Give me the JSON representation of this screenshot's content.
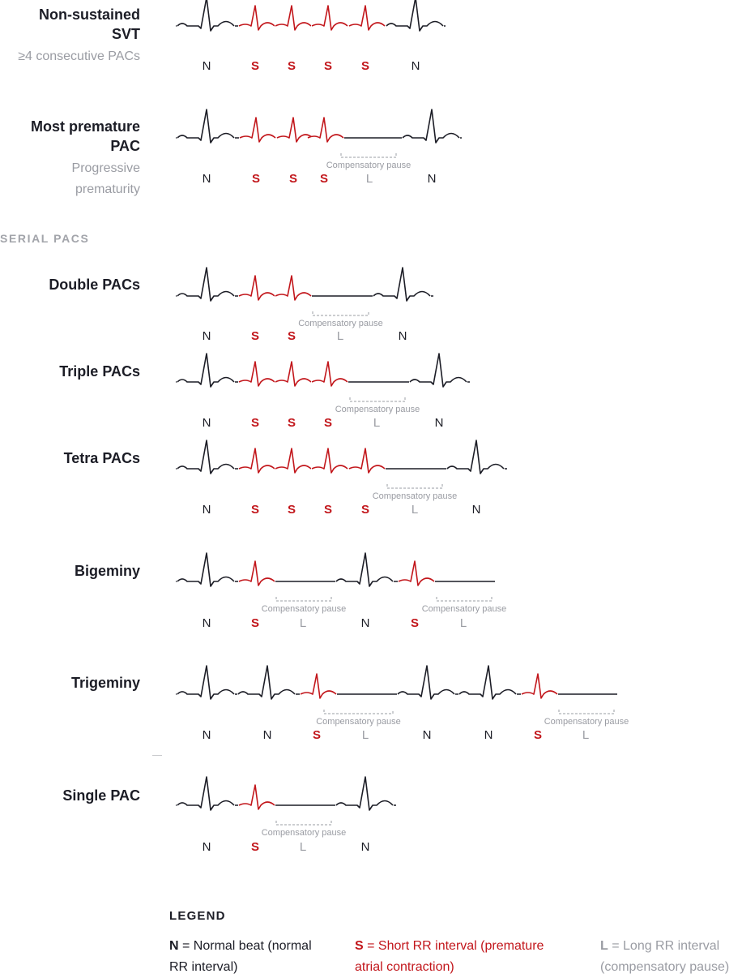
{
  "colors": {
    "normal": "#1c1d26",
    "premature": "#c2161b",
    "long": "#9a9ca3",
    "section": "#a2a4aa"
  },
  "rows": [
    {
      "id": "nsvt",
      "title": [
        "Non-sustained",
        "SVT"
      ],
      "subtitle": [
        "≥4 consecutive PACs"
      ],
      "beats": [
        "N",
        "S",
        "S",
        "S",
        "S",
        "N"
      ],
      "pauses": []
    },
    {
      "id": "most-premature",
      "title": [
        "Most premature",
        "PAC"
      ],
      "subtitle": [
        "Progressive",
        "prematurity"
      ],
      "beats": [
        "N",
        "S",
        "S",
        "S",
        "L",
        "N"
      ],
      "pauses": [
        "Compensatory pause"
      ]
    },
    {
      "id": "double",
      "title": [
        "Double PACs"
      ],
      "subtitle": [],
      "beats": [
        "N",
        "S",
        "S",
        "L",
        "N"
      ],
      "pauses": [
        "Compensatory pause"
      ]
    },
    {
      "id": "triple",
      "title": [
        "Triple PACs"
      ],
      "subtitle": [],
      "beats": [
        "N",
        "S",
        "S",
        "S",
        "L",
        "N"
      ],
      "pauses": [
        "Compensatory pause"
      ]
    },
    {
      "id": "tetra",
      "title": [
        "Tetra PACs"
      ],
      "subtitle": [],
      "beats": [
        "N",
        "S",
        "S",
        "S",
        "S",
        "L",
        "N"
      ],
      "pauses": [
        "Compensatory pause"
      ]
    },
    {
      "id": "bigeminy",
      "title": [
        "Bigeminy"
      ],
      "subtitle": [],
      "beats": [
        "N",
        "S",
        "L",
        "N",
        "S",
        "L"
      ],
      "pauses": [
        "Compensatory pause",
        "Compensatory pause"
      ]
    },
    {
      "id": "trigeminy",
      "title": [
        "Trigeminy"
      ],
      "subtitle": [],
      "beats": [
        "N",
        "N",
        "S",
        "L",
        "N",
        "N",
        "S",
        "L"
      ],
      "pauses": [
        "Compensatory pause",
        "Compensatory pause"
      ]
    },
    {
      "id": "single",
      "title": [
        "Single PAC"
      ],
      "subtitle": [],
      "beats": [
        "N",
        "S",
        "L",
        "N"
      ],
      "pauses": [
        "Compensatory pause"
      ]
    }
  ],
  "section_label": "SERIAL PACS",
  "legend": {
    "title": "LEGEND",
    "items": [
      {
        "key": "N",
        "text": " = Normal beat (normal RR interval)"
      },
      {
        "key": "S",
        "text": " = Short RR interval (premature atrial contraction)"
      },
      {
        "key": "L",
        "text": " = Long RR interval (compensatory pause)"
      }
    ]
  }
}
